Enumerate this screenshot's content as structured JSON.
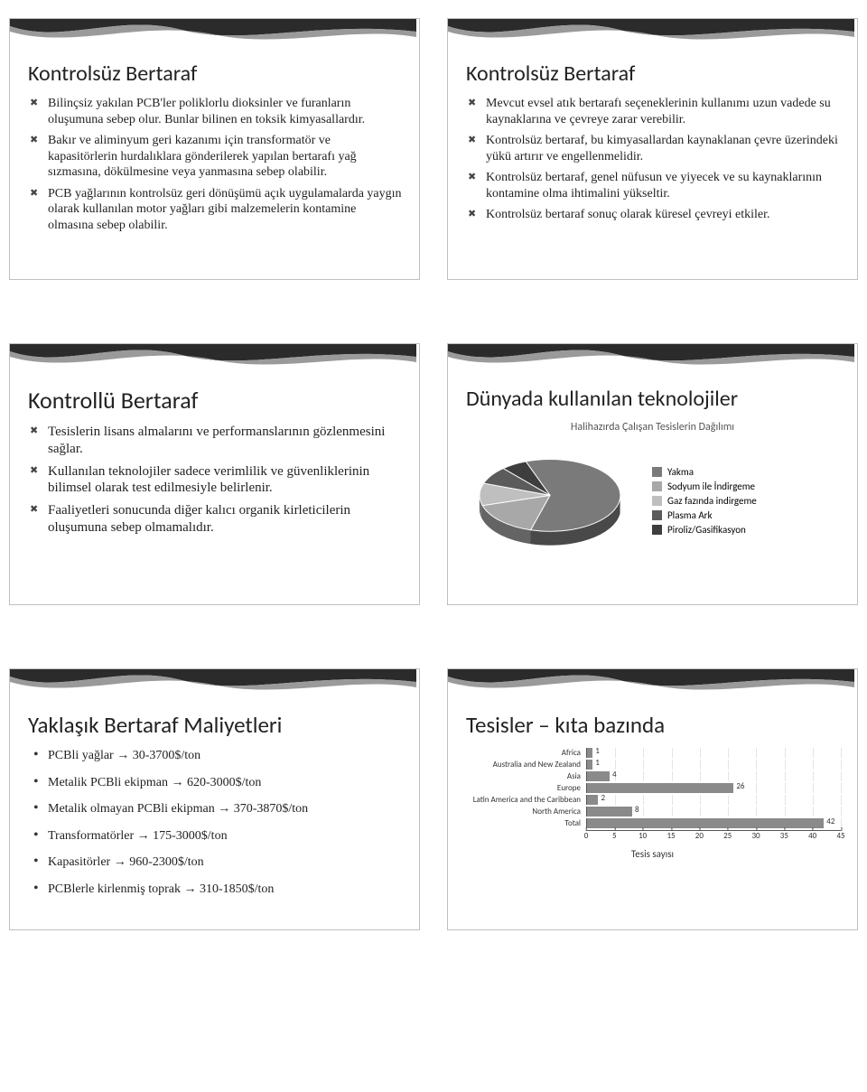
{
  "global": {
    "ribbon_dark": "#2b2b2b",
    "ribbon_light": "#9a9a9a",
    "slide_border": "#bfbfbf",
    "text_color": "#222222"
  },
  "slides": {
    "s1": {
      "title": "Kontrolsüz Bertaraf",
      "title_fontsize": 24,
      "bullet_fontsize": 14,
      "bullets": [
        "Bilinçsiz yakılan PCB'ler poliklorlu dioksinler ve furanların oluşumuna sebep olur.  Bunlar bilinen en toksik kimyasallardır.",
        "Bakır ve aliminyum geri kazanımı için transformatör ve kapasitörlerin hurdalıklara gönderilerek yapılan bertarafı yağ sızmasına, dökülmesine veya yanmasına sebep olabilir.",
        "PCB yağlarının kontrolsüz geri dönüşümü açık uygulamalarda yaygın olarak kullanılan motor yağları gibi malzemelerin kontamine olmasına sebep olabilir."
      ]
    },
    "s2": {
      "title": "Kontrolsüz Bertaraf",
      "title_fontsize": 24,
      "bullet_fontsize": 14,
      "bullets": [
        "Mevcut evsel atık bertarafı seçeneklerinin kullanımı uzun vadede su kaynaklarına ve çevreye zarar verebilir.",
        "Kontrolsüz bertaraf, bu kimyasallardan kaynaklanan çevre üzerindeki yükü artırır ve engellenmelidir.",
        "Kontrolsüz bertaraf, genel nüfusun ve yiyecek ve su kaynaklarının kontamine olma ihtimalini yükseltir.",
        "Kontrolsüz bertaraf sonuç olarak küresel çevreyi etkiler."
      ]
    },
    "s3": {
      "title": "Kontrollü Bertaraf",
      "title_fontsize": 26,
      "bullet_fontsize": 15,
      "bullets": [
        "Tesislerin lisans almalarını ve performanslarının gözlenmesini sağlar.",
        "Kullanılan teknolojiler sadece verimlilik ve güvenliklerinin  bilimsel olarak test edilmesiyle belirlenir.",
        "Faaliyetleri sonucunda diğer kalıcı organik kirleticilerin oluşumuna sebep olmamalıdır."
      ]
    },
    "s4": {
      "title": "Dünyada kullanılan teknolojiler",
      "title_fontsize": 24,
      "chart": {
        "type": "pie",
        "subtitle": "Halihazırda Çalışan Tesislerin Dağılımı",
        "subtitle_fontsize": 12,
        "legend_fontsize": 11,
        "slices": [
          {
            "label": "Yakma",
            "value": 60,
            "color": "#7a7a7a"
          },
          {
            "label": "Sodyum ile İndirgeme",
            "value": 16,
            "color": "#a8a8a8"
          },
          {
            "label": "Gaz fazında indirgeme",
            "value": 10,
            "color": "#bfbfbf"
          },
          {
            "label": "Plasma Ark",
            "value": 8,
            "color": "#5b5b5b"
          },
          {
            "label": "Piroliz/Gasifikasyon",
            "value": 6,
            "color": "#3e3e3e"
          }
        ],
        "border_color": "#ffffff",
        "tilt_deg": 55
      }
    },
    "s5": {
      "title": "Yaklaşık Bertaraf Maliyetleri",
      "title_fontsize": 25,
      "bullet_fontsize": 14,
      "bullets": [
        "PCBli yağlar → 30-3700$/ton",
        "Metalik PCBli ekipman → 620-3000$/ton",
        "Metalik olmayan PCBli ekipman → 370-3870$/ton",
        "Transformatörler → 175-3000$/ton",
        "Kapasitörler → 960-2300$/ton",
        "PCBlerle kirlenmiş toprak → 310-1850$/ton"
      ]
    },
    "s6": {
      "title": "Tesisler – kıta bazında",
      "title_fontsize": 25,
      "chart": {
        "type": "bar-horizontal",
        "axis_label": "Tesis sayısı",
        "axis_fontsize": 11,
        "label_fontsize": 9,
        "value_fontsize": 9,
        "bar_color": "#8a8a8a",
        "grid_color": "#e5e5e5",
        "axis_color": "#555555",
        "xlim": [
          0,
          45
        ],
        "xtick_step": 5,
        "categories": [
          {
            "label": "Africa",
            "value": 1
          },
          {
            "label": "Australia and New Zealand",
            "value": 1
          },
          {
            "label": "Asia",
            "value": 4
          },
          {
            "label": "Europe",
            "value": 26
          },
          {
            "label": "Latin America and the Caribbean",
            "value": 2
          },
          {
            "label": "North America",
            "value": 8
          },
          {
            "label": "Total",
            "value": 42
          }
        ]
      }
    }
  }
}
